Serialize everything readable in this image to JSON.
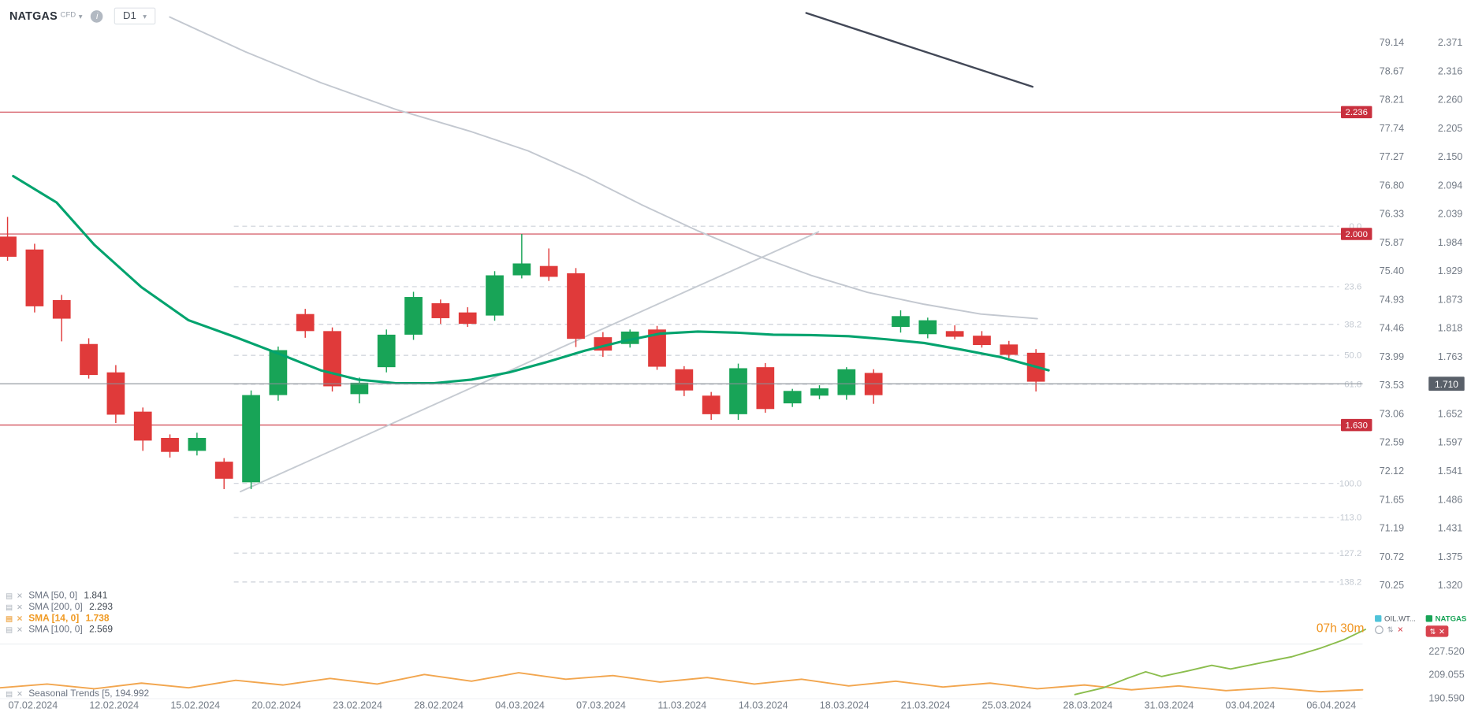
{
  "header": {
    "symbol": "NATGAS",
    "instrument_type": "CFD",
    "timeframe": "D1"
  },
  "icons": {
    "chevron_down": "▾",
    "info": "i",
    "close": "✕",
    "chart": "▤",
    "sort": "⇅"
  },
  "colors": {
    "up": "#18a457",
    "down": "#e03a3a",
    "sma_fast": "#02a36e",
    "sma_slow": "#c3c8d0",
    "level": "#cf4450",
    "badge": "#c9303e",
    "current_badge": "#596069",
    "highlight": "#f09a23",
    "seasonal_orange": "#f2a64f",
    "seasonal_green": "#8bbd4d",
    "accent_cyan": "#4fc3d9"
  },
  "legend": {
    "items": [
      {
        "label": "SMA [50, 0]",
        "value": "1.841",
        "highlight": false
      },
      {
        "label": "SMA [200, 0]",
        "value": "2.293",
        "highlight": false
      },
      {
        "label": "SMA [14, 0]",
        "value": "1.738",
        "highlight": true
      },
      {
        "label": "SMA [100, 0]",
        "value": "2.569",
        "highlight": false
      }
    ]
  },
  "countdown": "07h 30m",
  "overlay_chips": [
    {
      "label": "OIL.WT...",
      "color": "#4fc3d9"
    },
    {
      "label": "NATGAS",
      "color": "#18a457"
    }
  ],
  "bottom_panel": {
    "label": "Seasonal Trends [5, 194.992",
    "scale": [
      "227.520",
      "209.055",
      "190.590"
    ]
  },
  "chart_data": {
    "type": "candlestick",
    "symbol": "NATGAS",
    "timeframe": "D1",
    "current_price": "1.710",
    "ohlc": [
      [
        1.995,
        2.033,
        1.948,
        1.956
      ],
      [
        1.97,
        1.981,
        1.848,
        1.86
      ],
      [
        1.872,
        1.882,
        1.792,
        1.836
      ],
      [
        1.787,
        1.798,
        1.72,
        1.727
      ],
      [
        1.732,
        1.746,
        1.634,
        1.65
      ],
      [
        1.656,
        1.664,
        1.58,
        1.6
      ],
      [
        1.605,
        1.612,
        1.567,
        1.578
      ],
      [
        1.58,
        1.615,
        1.571,
        1.605
      ],
      [
        1.559,
        1.566,
        1.506,
        1.526
      ],
      [
        1.519,
        1.697,
        1.506,
        1.688
      ],
      [
        1.688,
        1.782,
        1.677,
        1.775
      ],
      [
        1.845,
        1.855,
        1.799,
        1.812
      ],
      [
        1.812,
        1.819,
        1.695,
        1.705
      ],
      [
        1.69,
        1.722,
        1.672,
        1.712
      ],
      [
        1.742,
        1.815,
        1.732,
        1.805
      ],
      [
        1.805,
        1.888,
        1.795,
        1.878
      ],
      [
        1.866,
        1.873,
        1.826,
        1.837
      ],
      [
        1.848,
        1.858,
        1.82,
        1.826
      ],
      [
        1.842,
        1.928,
        1.832,
        1.92
      ],
      [
        1.92,
        2.0,
        1.914,
        1.943
      ],
      [
        1.938,
        1.972,
        1.909,
        1.917
      ],
      [
        1.924,
        1.934,
        1.781,
        1.797
      ],
      [
        1.8,
        1.81,
        1.762,
        1.774
      ],
      [
        1.787,
        1.815,
        1.78,
        1.811
      ],
      [
        1.815,
        1.822,
        1.737,
        1.743
      ],
      [
        1.738,
        1.744,
        1.686,
        1.697
      ],
      [
        1.687,
        1.694,
        1.64,
        1.651
      ],
      [
        1.651,
        1.749,
        1.64,
        1.74
      ],
      [
        1.742,
        1.75,
        1.654,
        1.661
      ],
      [
        1.672,
        1.7,
        1.665,
        1.696
      ],
      [
        1.687,
        1.707,
        1.68,
        1.701
      ],
      [
        1.688,
        1.742,
        1.679,
        1.738
      ],
      [
        1.731,
        1.738,
        1.671,
        1.688
      ],
      [
        1.82,
        1.852,
        1.809,
        1.841
      ],
      [
        1.806,
        1.838,
        1.798,
        1.833
      ],
      [
        1.812,
        1.823,
        1.796,
        1.801
      ],
      [
        1.803,
        1.812,
        1.78,
        1.785
      ],
      [
        1.786,
        1.793,
        1.76,
        1.766
      ],
      [
        1.77,
        1.777,
        1.695,
        1.714
      ]
    ],
    "indicators": {
      "sma_fast": [
        [
          14,
          2.112
        ],
        [
          60,
          2.061
        ],
        [
          100,
          1.979
        ],
        [
          150,
          1.897
        ],
        [
          200,
          1.833
        ],
        [
          250,
          1.8
        ],
        [
          300,
          1.765
        ],
        [
          340,
          1.736
        ],
        [
          380,
          1.718
        ],
        [
          420,
          1.711
        ],
        [
          460,
          1.711
        ],
        [
          500,
          1.718
        ],
        [
          540,
          1.732
        ],
        [
          580,
          1.752
        ],
        [
          620,
          1.774
        ],
        [
          660,
          1.792
        ],
        [
          700,
          1.807
        ],
        [
          740,
          1.811
        ],
        [
          780,
          1.809
        ],
        [
          820,
          1.805
        ],
        [
          860,
          1.804
        ],
        [
          900,
          1.802
        ],
        [
          940,
          1.796
        ],
        [
          980,
          1.789
        ],
        [
          1020,
          1.776
        ],
        [
          1060,
          1.762
        ],
        [
          1100,
          1.742
        ],
        [
          1112,
          1.736
        ]
      ],
      "sma_slow": [
        [
          180,
          2.42
        ],
        [
          260,
          2.353
        ],
        [
          340,
          2.293
        ],
        [
          420,
          2.241
        ],
        [
          500,
          2.198
        ],
        [
          560,
          2.161
        ],
        [
          620,
          2.112
        ],
        [
          680,
          2.057
        ],
        [
          740,
          2.006
        ],
        [
          800,
          1.96
        ],
        [
          860,
          1.92
        ],
        [
          920,
          1.887
        ],
        [
          980,
          1.864
        ],
        [
          1040,
          1.845
        ],
        [
          1100,
          1.836
        ]
      ]
    },
    "drawings": {
      "trendline_up": [
        [
          255,
          1.501
        ],
        [
          868,
          2.004
        ]
      ],
      "trendline_down": [
        [
          855,
          2.428
        ],
        [
          1095,
          2.285
        ]
      ],
      "levels": [
        {
          "label": "2.236",
          "price": 2.236
        },
        {
          "label": "2.000",
          "price": 2.0
        },
        {
          "label": "1.630",
          "price": 1.63
        }
      ],
      "fib": [
        {
          "label": "0.0",
          "price": 2.015
        },
        {
          "label": "23.6",
          "price": 1.898
        },
        {
          "label": "38.2",
          "price": 1.825
        },
        {
          "label": "50.0",
          "price": 1.765
        },
        {
          "label": "61.8",
          "price": 1.709
        },
        {
          "label": "100.0",
          "price": 1.517
        },
        {
          "label": "113.0",
          "price": 1.451
        },
        {
          "label": "127.2",
          "price": 1.382
        },
        {
          "label": "138.2",
          "price": 1.326
        }
      ]
    },
    "axes": {
      "primary_labels": [
        "2.371",
        "2.316",
        "2.260",
        "2.205",
        "2.150",
        "2.094",
        "2.039",
        "1.984",
        "1.929",
        "1.873",
        "1.818",
        "1.763",
        "1.707",
        "1.652",
        "1.597",
        "1.541",
        "1.486",
        "1.431",
        "1.375",
        "1.320"
      ],
      "secondary_labels": [
        "79.14",
        "78.67",
        "78.21",
        "77.74",
        "77.27",
        "76.80",
        "76.33",
        "75.87",
        "75.40",
        "74.93",
        "74.46",
        "73.99",
        "73.53",
        "73.06",
        "72.59",
        "72.12",
        "71.65",
        "71.19",
        "70.72",
        "70.25"
      ],
      "dates": [
        "07.02.2024",
        "12.02.2024",
        "15.02.2024",
        "20.02.2024",
        "23.02.2024",
        "28.02.2024",
        "04.03.2024",
        "07.03.2024",
        "11.03.2024",
        "14.03.2024",
        "18.03.2024",
        "21.03.2024",
        "25.03.2024",
        "28.03.2024",
        "31.03.2024",
        "03.04.2024",
        "06.04.2024"
      ]
    },
    "seasonal_panel": {
      "scale": [
        "227.520",
        "209.055",
        "190.590"
      ],
      "series": [
        {
          "name": "seasonal-orange",
          "points": [
            [
              0,
              198.7
            ],
            [
              50,
              201.7
            ],
            [
              100,
              198.0
            ],
            [
              150,
              202.4
            ],
            [
              200,
              198.7
            ],
            [
              250,
              204.6
            ],
            [
              300,
              200.9
            ],
            [
              350,
              206.1
            ],
            [
              400,
              201.7
            ],
            [
              450,
              209.1
            ],
            [
              500,
              203.9
            ],
            [
              550,
              210.5
            ],
            [
              600,
              205.4
            ],
            [
              650,
              208.3
            ],
            [
              700,
              203.2
            ],
            [
              750,
              206.8
            ],
            [
              800,
              201.7
            ],
            [
              850,
              205.4
            ],
            [
              900,
              200.2
            ],
            [
              950,
              203.9
            ],
            [
              1000,
              199.4
            ],
            [
              1050,
              202.4
            ],
            [
              1100,
              198.0
            ],
            [
              1150,
              200.9
            ],
            [
              1200,
              197.2
            ],
            [
              1250,
              200.2
            ],
            [
              1300,
              196.5
            ],
            [
              1350,
              198.7
            ],
            [
              1400,
              195.7
            ],
            [
              1445,
              197.2
            ]
          ]
        },
        {
          "name": "seasonal-green",
          "points": [
            [
              1140,
              193.5
            ],
            [
              1170,
              198.7
            ],
            [
              1195,
              206.0
            ],
            [
              1215,
              211.3
            ],
            [
              1232,
              207.6
            ],
            [
              1260,
              212.0
            ],
            [
              1285,
              216.4
            ],
            [
              1305,
              213.5
            ],
            [
              1340,
              218.7
            ],
            [
              1370,
              223.1
            ],
            [
              1400,
              229.7
            ],
            [
              1425,
              236.4
            ],
            [
              1448,
              244.5
            ]
          ]
        }
      ]
    }
  }
}
